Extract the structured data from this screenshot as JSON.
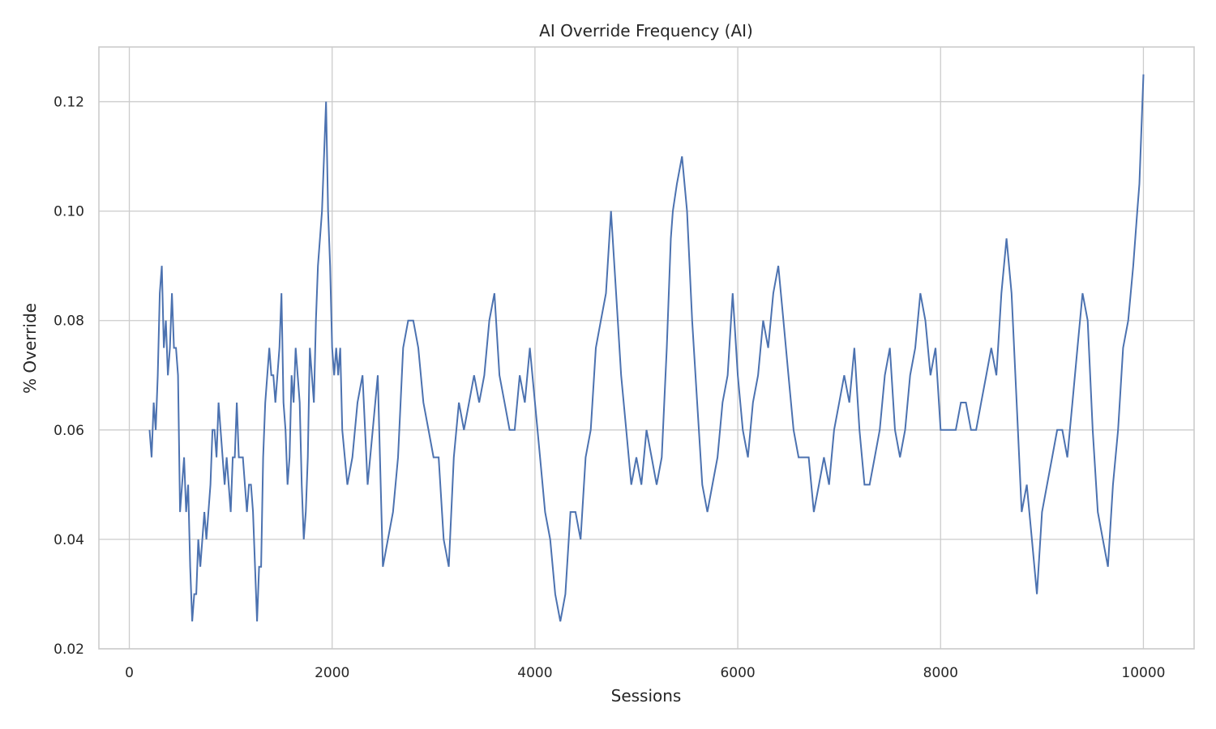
{
  "chart_data": {
    "type": "line",
    "title": "AI Override Frequency (AI)",
    "xlabel": "Sessions",
    "ylabel": "% Override",
    "xlim": [
      -300,
      10500
    ],
    "ylim": [
      0.02,
      0.13
    ],
    "x_ticks": [
      0,
      2000,
      4000,
      6000,
      8000,
      10000
    ],
    "x_tick_labels": [
      "0",
      "2000",
      "4000",
      "6000",
      "8000",
      "10000"
    ],
    "y_ticks": [
      0.02,
      0.04,
      0.06,
      0.08,
      0.1,
      0.12
    ],
    "y_tick_labels": [
      "0.02",
      "0.04",
      "0.06",
      "0.08",
      "0.10",
      "0.12"
    ],
    "grid": true,
    "series": [
      {
        "color": "#4c72b0",
        "x": [
          200,
          220,
          240,
          260,
          280,
          300,
          320,
          340,
          360,
          380,
          400,
          420,
          440,
          460,
          480,
          500,
          520,
          540,
          560,
          580,
          600,
          620,
          640,
          660,
          680,
          700,
          720,
          740,
          760,
          780,
          800,
          820,
          840,
          860,
          880,
          900,
          920,
          940,
          960,
          980,
          1000,
          1020,
          1040,
          1060,
          1080,
          1100,
          1120,
          1140,
          1160,
          1180,
          1200,
          1220,
          1240,
          1260,
          1280,
          1300,
          1320,
          1340,
          1360,
          1380,
          1400,
          1420,
          1440,
          1460,
          1480,
          1500,
          1520,
          1540,
          1560,
          1580,
          1600,
          1620,
          1640,
          1660,
          1680,
          1700,
          1720,
          1740,
          1760,
          1780,
          1800,
          1820,
          1840,
          1860,
          1880,
          1900,
          1920,
          1940,
          1960,
          1980,
          2000,
          2020,
          2040,
          2060,
          2080,
          2100,
          2150,
          2200,
          2250,
          2300,
          2350,
          2400,
          2450,
          2500,
          2550,
          2600,
          2650,
          2700,
          2750,
          2800,
          2850,
          2900,
          2950,
          3000,
          3050,
          3100,
          3150,
          3200,
          3250,
          3300,
          3350,
          3400,
          3450,
          3500,
          3550,
          3600,
          3650,
          3700,
          3750,
          3800,
          3850,
          3900,
          3950,
          4000,
          4050,
          4100,
          4150,
          4200,
          4250,
          4300,
          4350,
          4400,
          4450,
          4500,
          4550,
          4600,
          4650,
          4700,
          4750,
          4800,
          4850,
          4900,
          4950,
          5000,
          5050,
          5100,
          5150,
          5200,
          5250,
          5300,
          5320,
          5340,
          5360,
          5400,
          5450,
          5500,
          5550,
          5600,
          5650,
          5700,
          5750,
          5800,
          5850,
          5900,
          5950,
          6000,
          6050,
          6100,
          6150,
          6200,
          6250,
          6300,
          6350,
          6400,
          6450,
          6500,
          6550,
          6600,
          6650,
          6700,
          6750,
          6800,
          6850,
          6900,
          6950,
          7000,
          7050,
          7100,
          7150,
          7200,
          7250,
          7300,
          7350,
          7400,
          7450,
          7500,
          7550,
          7600,
          7650,
          7700,
          7750,
          7800,
          7850,
          7900,
          7950,
          8000,
          8050,
          8100,
          8150,
          8200,
          8250,
          8300,
          8350,
          8400,
          8450,
          8500,
          8550,
          8600,
          8650,
          8700,
          8750,
          8800,
          8850,
          8900,
          8950,
          9000,
          9050,
          9100,
          9150,
          9200,
          9250,
          9300,
          9350,
          9400,
          9450,
          9500,
          9550,
          9600,
          9650,
          9700,
          9750,
          9800,
          9850,
          9900,
          9920,
          9940,
          9960,
          9980,
          10000
        ],
        "values": [
          0.06,
          0.055,
          0.065,
          0.06,
          0.07,
          0.085,
          0.09,
          0.075,
          0.08,
          0.07,
          0.075,
          0.085,
          0.075,
          0.075,
          0.07,
          0.045,
          0.05,
          0.055,
          0.045,
          0.05,
          0.035,
          0.025,
          0.03,
          0.03,
          0.04,
          0.035,
          0.04,
          0.045,
          0.04,
          0.045,
          0.05,
          0.06,
          0.06,
          0.055,
          0.065,
          0.06,
          0.055,
          0.05,
          0.055,
          0.05,
          0.045,
          0.055,
          0.055,
          0.065,
          0.055,
          0.055,
          0.055,
          0.05,
          0.045,
          0.05,
          0.05,
          0.045,
          0.035,
          0.025,
          0.035,
          0.035,
          0.055,
          0.065,
          0.07,
          0.075,
          0.07,
          0.07,
          0.065,
          0.07,
          0.075,
          0.085,
          0.065,
          0.06,
          0.05,
          0.055,
          0.07,
          0.065,
          0.075,
          0.07,
          0.065,
          0.05,
          0.04,
          0.045,
          0.055,
          0.075,
          0.07,
          0.065,
          0.08,
          0.09,
          0.095,
          0.1,
          0.11,
          0.12,
          0.1,
          0.09,
          0.075,
          0.07,
          0.075,
          0.07,
          0.075,
          0.06,
          0.05,
          0.055,
          0.065,
          0.07,
          0.05,
          0.06,
          0.07,
          0.035,
          0.04,
          0.045,
          0.055,
          0.075,
          0.08,
          0.08,
          0.075,
          0.065,
          0.06,
          0.055,
          0.055,
          0.04,
          0.035,
          0.055,
          0.065,
          0.06,
          0.065,
          0.07,
          0.065,
          0.07,
          0.08,
          0.085,
          0.07,
          0.065,
          0.06,
          0.06,
          0.07,
          0.065,
          0.075,
          0.065,
          0.055,
          0.045,
          0.04,
          0.03,
          0.025,
          0.03,
          0.045,
          0.045,
          0.04,
          0.055,
          0.06,
          0.075,
          0.08,
          0.085,
          0.1,
          0.085,
          0.07,
          0.06,
          0.05,
          0.055,
          0.05,
          0.06,
          0.055,
          0.05,
          0.055,
          0.075,
          0.085,
          0.095,
          0.1,
          0.105,
          0.11,
          0.1,
          0.08,
          0.065,
          0.05,
          0.045,
          0.05,
          0.055,
          0.065,
          0.07,
          0.085,
          0.07,
          0.06,
          0.055,
          0.065,
          0.07,
          0.08,
          0.075,
          0.085,
          0.09,
          0.08,
          0.07,
          0.06,
          0.055,
          0.055,
          0.055,
          0.045,
          0.05,
          0.055,
          0.05,
          0.06,
          0.065,
          0.07,
          0.065,
          0.075,
          0.06,
          0.05,
          0.05,
          0.055,
          0.06,
          0.07,
          0.075,
          0.06,
          0.055,
          0.06,
          0.07,
          0.075,
          0.085,
          0.08,
          0.07,
          0.075,
          0.06,
          0.06,
          0.06,
          0.06,
          0.065,
          0.065,
          0.06,
          0.06,
          0.065,
          0.07,
          0.075,
          0.07,
          0.085,
          0.095,
          0.085,
          0.065,
          0.045,
          0.05,
          0.04,
          0.03,
          0.045,
          0.05,
          0.055,
          0.06,
          0.06,
          0.055,
          0.065,
          0.075,
          0.085,
          0.08,
          0.06,
          0.045,
          0.04,
          0.035,
          0.05,
          0.06,
          0.075,
          0.08,
          0.09,
          0.095,
          0.1,
          0.105,
          0.115,
          0.125
        ]
      }
    ]
  }
}
